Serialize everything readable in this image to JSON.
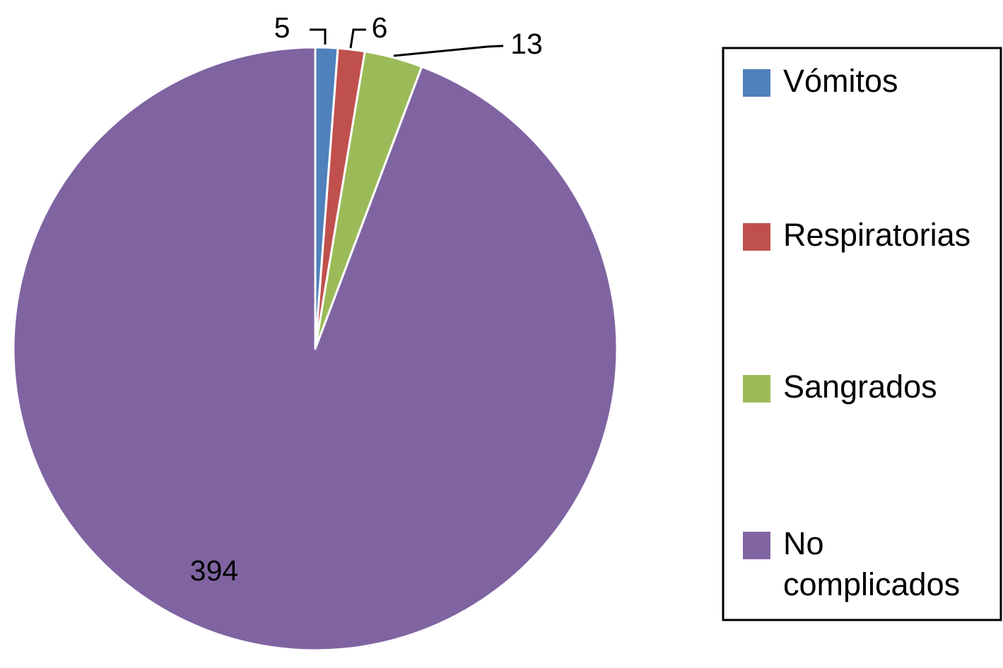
{
  "chart_data": {
    "type": "pie",
    "title": "",
    "categories": [
      "Vómitos",
      "Respiratorias",
      "Sangrados",
      "No complicados"
    ],
    "values": [
      5,
      6,
      13,
      394
    ],
    "colors": [
      "#4F81BD",
      "#C0504D",
      "#9BBB59",
      "#8064A2"
    ],
    "data_labels": [
      "5",
      "6",
      "13",
      "394"
    ],
    "legend": {
      "placement": "right",
      "entries": [
        {
          "lines": [
            "Vómitos"
          ]
        },
        {
          "lines": [
            "Respiratorias"
          ]
        },
        {
          "lines": [
            "Sangrados"
          ]
        },
        {
          "lines": [
            "No",
            "complicados"
          ]
        }
      ]
    }
  }
}
